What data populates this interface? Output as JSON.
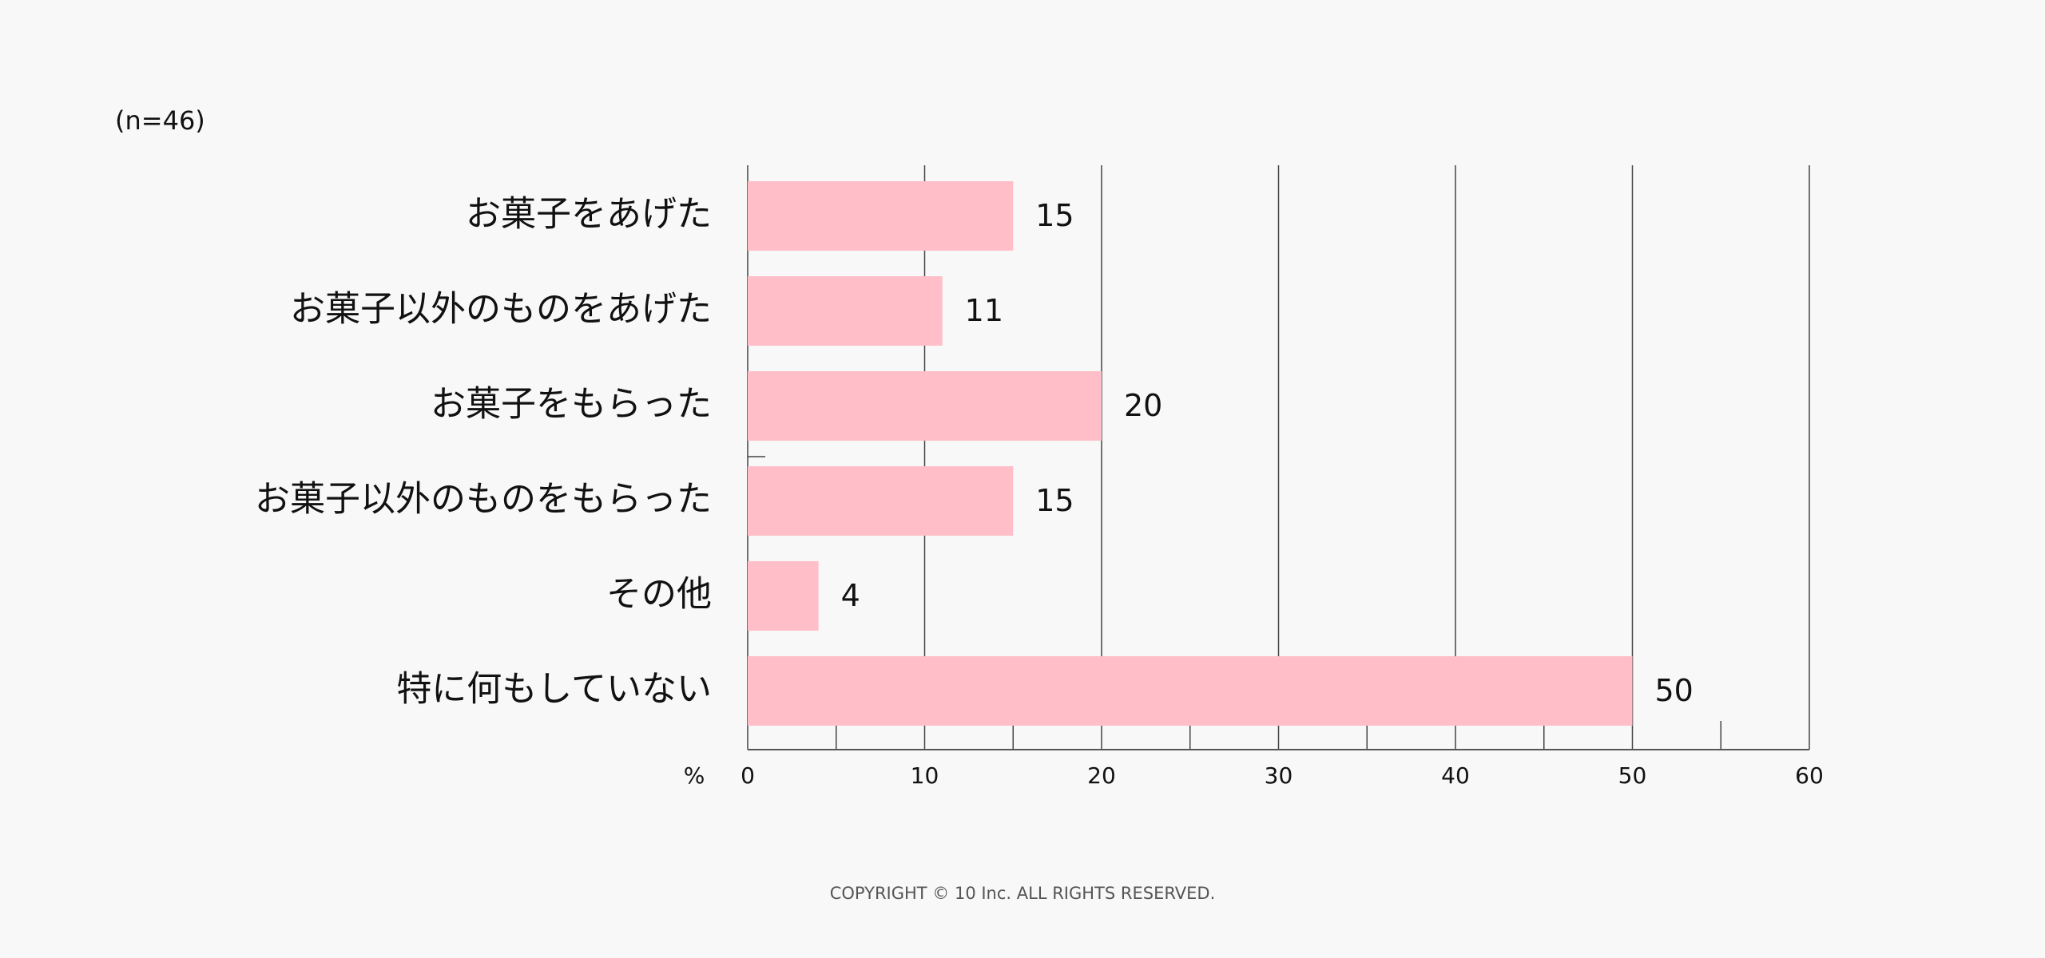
{
  "chart_data": {
    "type": "bar",
    "orientation": "horizontal",
    "note": "(n=46)",
    "categories": [
      "お菓子をあげた",
      "お菓子以外のものをあげた",
      "お菓子をもらった",
      "お菓子以外のものをもらった",
      "その他",
      "特に何もしていない"
    ],
    "values": [
      15,
      11,
      20,
      15,
      4,
      50
    ],
    "xlabel": "%",
    "xlim": [
      0,
      60
    ],
    "xticks": [
      0,
      10,
      20,
      30,
      40,
      50,
      60
    ],
    "grid": true,
    "bar_color": "#ffbec8"
  },
  "footer": {
    "copyright": "COPYRIGHT © 10 Inc. ALL RIGHTS RESERVED."
  }
}
